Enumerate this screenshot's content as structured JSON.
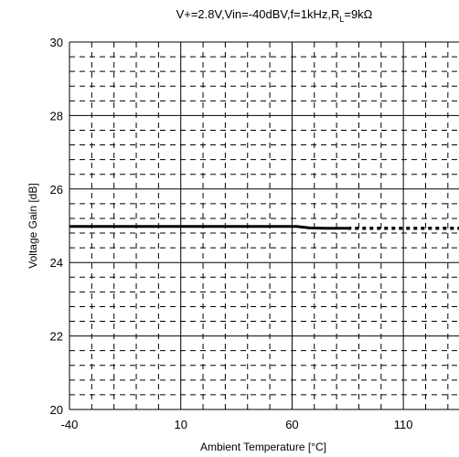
{
  "chart_data": {
    "type": "line",
    "title_parts": {
      "pre": "V+=2.8V,Vin=-40dBV,f=1kHz,R",
      "sub": "L",
      "post": "=9kΩ"
    },
    "xlabel": "Ambient Temperature [°C]",
    "ylabel": "Voltage Gain [dB]",
    "xlim": [
      -40,
      135
    ],
    "ylim": [
      20,
      30
    ],
    "x_ticks": [
      -40,
      10,
      60,
      110
    ],
    "y_ticks": [
      20,
      22,
      24,
      26,
      28,
      30
    ],
    "x_tick_labels": [
      "-40",
      "10",
      "60",
      "110"
    ],
    "y_tick_labels": [
      "20",
      "22",
      "24",
      "26",
      "28",
      "30"
    ],
    "grid": {
      "major": true,
      "minor_dashed": true
    },
    "series": [
      {
        "style": "solid",
        "x": [
          -40,
          0,
          40,
          62,
          68,
          75,
          85
        ],
        "y": [
          24.98,
          24.98,
          24.98,
          24.98,
          24.94,
          24.93,
          24.93
        ]
      },
      {
        "style": "dotted",
        "x": [
          85,
          100,
          115,
          135
        ],
        "y": [
          24.93,
          24.93,
          24.93,
          24.93
        ]
      }
    ]
  }
}
